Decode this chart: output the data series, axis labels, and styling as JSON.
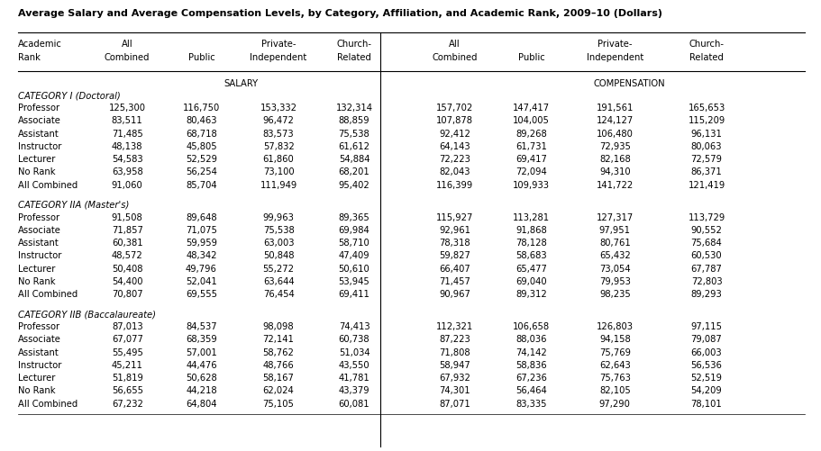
{
  "title": "Average Salary and Average Compensation Levels, by Category, Affiliation, and Academic Rank, 2009–10 (Dollars)",
  "salary_label": "SALARY",
  "compensation_label": "COMPENSATION",
  "categories": [
    {
      "name": "CATEGORY I (Doctoral)",
      "rows": [
        [
          "Professor",
          "125,300",
          "116,750",
          "153,332",
          "132,314",
          "157,702",
          "147,417",
          "191,561",
          "165,653"
        ],
        [
          "Associate",
          "83,511",
          "80,463",
          "96,472",
          "88,859",
          "107,878",
          "104,005",
          "124,127",
          "115,209"
        ],
        [
          "Assistant",
          "71,485",
          "68,718",
          "83,573",
          "75,538",
          "92,412",
          "89,268",
          "106,480",
          "96,131"
        ],
        [
          "Instructor",
          "48,138",
          "45,805",
          "57,832",
          "61,612",
          "64,143",
          "61,731",
          "72,935",
          "80,063"
        ],
        [
          "Lecturer",
          "54,583",
          "52,529",
          "61,860",
          "54,884",
          "72,223",
          "69,417",
          "82,168",
          "72,579"
        ],
        [
          "No Rank",
          "63,958",
          "56,254",
          "73,100",
          "68,201",
          "82,043",
          "72,094",
          "94,310",
          "86,371"
        ],
        [
          "All Combined",
          "91,060",
          "85,704",
          "111,949",
          "95,402",
          "116,399",
          "109,933",
          "141,722",
          "121,419"
        ]
      ]
    },
    {
      "name": "CATEGORY IIA (Master's)",
      "rows": [
        [
          "Professor",
          "91,508",
          "89,648",
          "99,963",
          "89,365",
          "115,927",
          "113,281",
          "127,317",
          "113,729"
        ],
        [
          "Associate",
          "71,857",
          "71,075",
          "75,538",
          "69,984",
          "92,961",
          "91,868",
          "97,951",
          "90,552"
        ],
        [
          "Assistant",
          "60,381",
          "59,959",
          "63,003",
          "58,710",
          "78,318",
          "78,128",
          "80,761",
          "75,684"
        ],
        [
          "Instructor",
          "48,572",
          "48,342",
          "50,848",
          "47,409",
          "59,827",
          "58,683",
          "65,432",
          "60,530"
        ],
        [
          "Lecturer",
          "50,408",
          "49,796",
          "55,272",
          "50,610",
          "66,407",
          "65,477",
          "73,054",
          "67,787"
        ],
        [
          "No Rank",
          "54,400",
          "52,041",
          "63,644",
          "53,945",
          "71,457",
          "69,040",
          "79,953",
          "72,803"
        ],
        [
          "All Combined",
          "70,807",
          "69,555",
          "76,454",
          "69,411",
          "90,967",
          "89,312",
          "98,235",
          "89,293"
        ]
      ]
    },
    {
      "name": "CATEGORY IIB (Baccalaureate)",
      "rows": [
        [
          "Professor",
          "87,013",
          "84,537",
          "98,098",
          "74,413",
          "112,321",
          "106,658",
          "126,803",
          "97,115"
        ],
        [
          "Associate",
          "67,077",
          "68,359",
          "72,141",
          "60,738",
          "87,223",
          "88,036",
          "94,158",
          "79,087"
        ],
        [
          "Assistant",
          "55,495",
          "57,001",
          "58,762",
          "51,034",
          "71,808",
          "74,142",
          "75,769",
          "66,003"
        ],
        [
          "Instructor",
          "45,211",
          "44,476",
          "48,766",
          "43,550",
          "58,947",
          "58,836",
          "62,643",
          "56,536"
        ],
        [
          "Lecturer",
          "51,819",
          "50,628",
          "58,167",
          "41,781",
          "67,932",
          "67,236",
          "75,763",
          "52,519"
        ],
        [
          "No Rank",
          "56,655",
          "44,218",
          "62,024",
          "43,379",
          "74,301",
          "56,464",
          "82,105",
          "54,209"
        ],
        [
          "All Combined",
          "67,232",
          "64,804",
          "75,105",
          "60,081",
          "87,071",
          "83,335",
          "97,290",
          "78,101"
        ]
      ]
    }
  ],
  "bg_color": "#ffffff",
  "text_color": "#000000",
  "font_size": 7.2,
  "title_font_size": 8.0,
  "header_font_size": 7.2
}
